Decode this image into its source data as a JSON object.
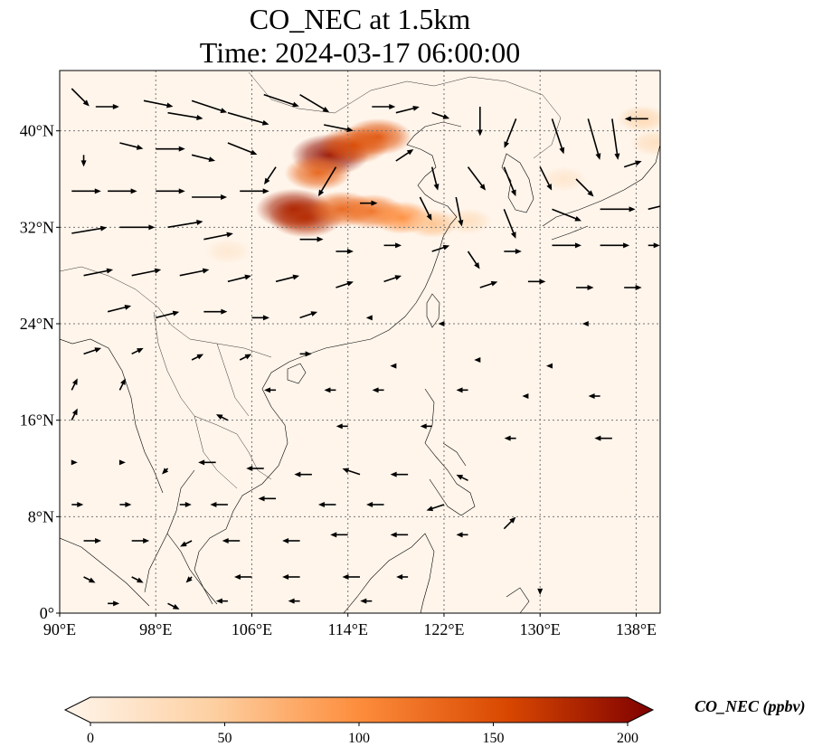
{
  "title": "CO_NEC at 1.5km",
  "subtitle": "Time: 2024-03-17 06:00:00",
  "map": {
    "lon_range": [
      90,
      140
    ],
    "lat_range": [
      0,
      45
    ],
    "lon_ticks": [
      {
        "value": 90,
        "label": "90°E"
      },
      {
        "value": 98,
        "label": "98°E"
      },
      {
        "value": 106,
        "label": "106°E"
      },
      {
        "value": 114,
        "label": "114°E"
      },
      {
        "value": 122,
        "label": "122°E"
      },
      {
        "value": 130,
        "label": "130°E"
      },
      {
        "value": 138,
        "label": "138°E"
      }
    ],
    "lat_ticks": [
      {
        "value": 0,
        "label": "0°"
      },
      {
        "value": 8,
        "label": "8°N"
      },
      {
        "value": 16,
        "label": "16°N"
      },
      {
        "value": 24,
        "label": "24°N"
      },
      {
        "value": 32,
        "label": "32°N"
      },
      {
        "value": 40,
        "label": "40°N"
      }
    ],
    "gridlines": true
  },
  "colorbar": {
    "label": "CO_NEC (ppbv)",
    "min": 0,
    "max": 200,
    "ticks": [
      {
        "value": 0,
        "label": "0"
      },
      {
        "value": 50,
        "label": "50"
      },
      {
        "value": 100,
        "label": "100"
      },
      {
        "value": 150,
        "label": "150"
      },
      {
        "value": 200,
        "label": "200"
      }
    ],
    "colors": [
      "#fff5eb",
      "#fdd0a2",
      "#fd8d3c",
      "#d94801",
      "#7f0000"
    ]
  },
  "concentration_plumes": [
    {
      "lon": 112.5,
      "lat": 38.0,
      "value": 190
    },
    {
      "lon": 114.5,
      "lat": 38.8,
      "value": 150
    },
    {
      "lon": 116.5,
      "lat": 39.5,
      "value": 140
    },
    {
      "lon": 111.5,
      "lat": 36.5,
      "value": 130
    },
    {
      "lon": 109.5,
      "lat": 33.5,
      "value": 180
    },
    {
      "lon": 110.5,
      "lat": 32.8,
      "value": 170
    },
    {
      "lon": 113.5,
      "lat": 33.5,
      "value": 130
    },
    {
      "lon": 116.0,
      "lat": 33.3,
      "value": 120
    },
    {
      "lon": 118.5,
      "lat": 32.8,
      "value": 100
    },
    {
      "lon": 121.0,
      "lat": 32.3,
      "value": 60
    },
    {
      "lon": 124.0,
      "lat": 32.5,
      "value": 30
    },
    {
      "lon": 138.5,
      "lat": 41.0,
      "value": 40
    },
    {
      "lon": 139.5,
      "lat": 39.0,
      "value": 30
    },
    {
      "lon": 132.0,
      "lat": 36.0,
      "value": 20
    },
    {
      "lon": 104.0,
      "lat": 30.0,
      "value": 18
    }
  ],
  "wind_vectors": [
    {
      "lon": 91,
      "lat": 43.5,
      "u": 3,
      "v": -3
    },
    {
      "lon": 93,
      "lat": 42,
      "u": 4,
      "v": 0
    },
    {
      "lon": 97,
      "lat": 42.5,
      "u": 5,
      "v": -1
    },
    {
      "lon": 99,
      "lat": 41.5,
      "u": 6,
      "v": -1
    },
    {
      "lon": 101,
      "lat": 42.5,
      "u": 6,
      "v": -2
    },
    {
      "lon": 104,
      "lat": 41.5,
      "u": 7,
      "v": -2
    },
    {
      "lon": 107,
      "lat": 43,
      "u": 6,
      "v": -2
    },
    {
      "lon": 110,
      "lat": 43,
      "u": 5,
      "v": -3
    },
    {
      "lon": 112,
      "lat": 40.5,
      "u": 5,
      "v": -1
    },
    {
      "lon": 116,
      "lat": 42,
      "u": 4,
      "v": 0
    },
    {
      "lon": 118,
      "lat": 41.5,
      "u": 4,
      "v": 1
    },
    {
      "lon": 121,
      "lat": 41.5,
      "u": 3,
      "v": -1
    },
    {
      "lon": 125,
      "lat": 42,
      "u": 0,
      "v": -5
    },
    {
      "lon": 128,
      "lat": 41,
      "u": -2,
      "v": -5
    },
    {
      "lon": 131,
      "lat": 41,
      "u": 2,
      "v": -6
    },
    {
      "lon": 134,
      "lat": 41,
      "u": 2,
      "v": -7
    },
    {
      "lon": 136,
      "lat": 41,
      "u": 1,
      "v": -7
    },
    {
      "lon": 139,
      "lat": 41,
      "u": -4,
      "v": 0
    },
    {
      "lon": 92,
      "lat": 38,
      "u": 0,
      "v": -2
    },
    {
      "lon": 95,
      "lat": 39,
      "u": 4,
      "v": -1
    },
    {
      "lon": 98,
      "lat": 38.5,
      "u": 5,
      "v": 0
    },
    {
      "lon": 101,
      "lat": 38,
      "u": 4,
      "v": -1
    },
    {
      "lon": 104,
      "lat": 39,
      "u": 5,
      "v": -2
    },
    {
      "lon": 108,
      "lat": 37,
      "u": -2,
      "v": -3
    },
    {
      "lon": 113,
      "lat": 37,
      "u": -3,
      "v": -5
    },
    {
      "lon": 118,
      "lat": 37.5,
      "u": 3,
      "v": 2
    },
    {
      "lon": 121,
      "lat": 37,
      "u": 1,
      "v": -4
    },
    {
      "lon": 124,
      "lat": 37,
      "u": 3,
      "v": -4
    },
    {
      "lon": 127,
      "lat": 37,
      "u": 2,
      "v": -5
    },
    {
      "lon": 130,
      "lat": 37,
      "u": 2,
      "v": -4
    },
    {
      "lon": 133,
      "lat": 36,
      "u": 3,
      "v": -3
    },
    {
      "lon": 137,
      "lat": 37,
      "u": 3,
      "v": 1
    },
    {
      "lon": 91,
      "lat": 35,
      "u": 5,
      "v": 0
    },
    {
      "lon": 94,
      "lat": 35,
      "u": 5,
      "v": 0
    },
    {
      "lon": 98,
      "lat": 35,
      "u": 5,
      "v": 0
    },
    {
      "lon": 101,
      "lat": 34.5,
      "u": 6,
      "v": 0
    },
    {
      "lon": 105,
      "lat": 35,
      "u": 5,
      "v": 0
    },
    {
      "lon": 115,
      "lat": 34,
      "u": 3,
      "v": 0
    },
    {
      "lon": 120,
      "lat": 34.5,
      "u": 2,
      "v": -4
    },
    {
      "lon": 123,
      "lat": 34.5,
      "u": 1,
      "v": -5
    },
    {
      "lon": 127,
      "lat": 33.5,
      "u": 2,
      "v": -5
    },
    {
      "lon": 131,
      "lat": 33.5,
      "u": 5,
      "v": -2
    },
    {
      "lon": 135,
      "lat": 33.5,
      "u": 6,
      "v": 0
    },
    {
      "lon": 139,
      "lat": 33.5,
      "u": 4,
      "v": 1
    },
    {
      "lon": 91,
      "lat": 31.5,
      "u": 6,
      "v": 1
    },
    {
      "lon": 95,
      "lat": 32,
      "u": 6,
      "v": 0
    },
    {
      "lon": 99,
      "lat": 32,
      "u": 6,
      "v": 1
    },
    {
      "lon": 102,
      "lat": 31,
      "u": 5,
      "v": 1
    },
    {
      "lon": 110,
      "lat": 31,
      "u": 4,
      "v": 0
    },
    {
      "lon": 113,
      "lat": 30,
      "u": 3,
      "v": 0
    },
    {
      "lon": 117,
      "lat": 30.5,
      "u": 3,
      "v": 0
    },
    {
      "lon": 121,
      "lat": 30,
      "u": 3,
      "v": 1
    },
    {
      "lon": 124,
      "lat": 30,
      "u": 2,
      "v": -3
    },
    {
      "lon": 127,
      "lat": 30,
      "u": 3,
      "v": 0
    },
    {
      "lon": 131,
      "lat": 30.5,
      "u": 5,
      "v": 0
    },
    {
      "lon": 135,
      "lat": 30.5,
      "u": 5,
      "v": 0
    },
    {
      "lon": 139,
      "lat": 30.5,
      "u": 2,
      "v": 0
    },
    {
      "lon": 92,
      "lat": 28,
      "u": 5,
      "v": 1
    },
    {
      "lon": 96,
      "lat": 28,
      "u": 5,
      "v": 1
    },
    {
      "lon": 100,
      "lat": 28,
      "u": 5,
      "v": 1
    },
    {
      "lon": 104,
      "lat": 27.5,
      "u": 4,
      "v": 1
    },
    {
      "lon": 108,
      "lat": 27.5,
      "u": 4,
      "v": 1
    },
    {
      "lon": 113,
      "lat": 27,
      "u": 3,
      "v": 1
    },
    {
      "lon": 117,
      "lat": 27.5,
      "u": 3,
      "v": 1
    },
    {
      "lon": 125,
      "lat": 27,
      "u": 3,
      "v": 1
    },
    {
      "lon": 129,
      "lat": 27.5,
      "u": 3,
      "v": 0
    },
    {
      "lon": 133,
      "lat": 27,
      "u": 3,
      "v": 0
    },
    {
      "lon": 137,
      "lat": 27,
      "u": 3,
      "v": 0
    },
    {
      "lon": 94,
      "lat": 25,
      "u": 4,
      "v": 1
    },
    {
      "lon": 98,
      "lat": 24.5,
      "u": 4,
      "v": 1
    },
    {
      "lon": 102,
      "lat": 25,
      "u": 4,
      "v": 0
    },
    {
      "lon": 106,
      "lat": 24.5,
      "u": 3,
      "v": 0
    },
    {
      "lon": 110,
      "lat": 24.5,
      "u": 3,
      "v": 1
    },
    {
      "lon": 116,
      "lat": 24.5,
      "u": -1,
      "v": 0
    },
    {
      "lon": 122,
      "lat": 24,
      "u": -1,
      "v": 0
    },
    {
      "lon": 134,
      "lat": 24,
      "u": -1,
      "v": 0
    },
    {
      "lon": 92,
      "lat": 21.5,
      "u": 3,
      "v": 1
    },
    {
      "lon": 96,
      "lat": 21.5,
      "u": 2,
      "v": 1
    },
    {
      "lon": 101,
      "lat": 21,
      "u": 2,
      "v": 1
    },
    {
      "lon": 105,
      "lat": 21,
      "u": 2,
      "v": 1
    },
    {
      "lon": 110,
      "lat": 21.5,
      "u": 2,
      "v": 0
    },
    {
      "lon": 118,
      "lat": 20.5,
      "u": -1,
      "v": 0
    },
    {
      "lon": 125,
      "lat": 21,
      "u": -1,
      "v": 0
    },
    {
      "lon": 131,
      "lat": 20.5,
      "u": -1,
      "v": 0
    },
    {
      "lon": 91,
      "lat": 18.5,
      "u": 1,
      "v": 2
    },
    {
      "lon": 95,
      "lat": 18.5,
      "u": 1,
      "v": 2
    },
    {
      "lon": 108,
      "lat": 18.5,
      "u": -2,
      "v": 0
    },
    {
      "lon": 113,
      "lat": 18.5,
      "u": -2,
      "v": 0
    },
    {
      "lon": 117,
      "lat": 18.5,
      "u": -2,
      "v": 0
    },
    {
      "lon": 124,
      "lat": 18.5,
      "u": -2,
      "v": 0
    },
    {
      "lon": 129,
      "lat": 18,
      "u": -1,
      "v": 0
    },
    {
      "lon": 135,
      "lat": 18,
      "u": -2,
      "v": 0
    },
    {
      "lon": 91,
      "lat": 16,
      "u": 1,
      "v": 2
    },
    {
      "lon": 104,
      "lat": 16,
      "u": -2,
      "v": 1
    },
    {
      "lon": 114,
      "lat": 15.5,
      "u": -2,
      "v": 0
    },
    {
      "lon": 121,
      "lat": 15.5,
      "u": -2,
      "v": 0
    },
    {
      "lon": 128,
      "lat": 14.5,
      "u": -2,
      "v": 0
    },
    {
      "lon": 136,
      "lat": 14.5,
      "u": -3,
      "v": 0
    },
    {
      "lon": 91,
      "lat": 12.5,
      "u": 1,
      "v": 0
    },
    {
      "lon": 95,
      "lat": 12.5,
      "u": 1,
      "v": 0
    },
    {
      "lon": 99,
      "lat": 12,
      "u": -1,
      "v": -1
    },
    {
      "lon": 103,
      "lat": 12.5,
      "u": -3,
      "v": 0
    },
    {
      "lon": 107,
      "lat": 12,
      "u": -3,
      "v": 0
    },
    {
      "lon": 111,
      "lat": 11.5,
      "u": -3,
      "v": 0
    },
    {
      "lon": 115,
      "lat": 11.5,
      "u": -3,
      "v": 1
    },
    {
      "lon": 119,
      "lat": 11.5,
      "u": -3,
      "v": 0
    },
    {
      "lon": 124,
      "lat": 11,
      "u": -2,
      "v": 1
    },
    {
      "lon": 91,
      "lat": 9,
      "u": 2,
      "v": 0
    },
    {
      "lon": 95,
      "lat": 9,
      "u": 2,
      "v": 0
    },
    {
      "lon": 100,
      "lat": 9,
      "u": 2,
      "v": 0
    },
    {
      "lon": 104,
      "lat": 9,
      "u": -3,
      "v": 0
    },
    {
      "lon": 108,
      "lat": 9.5,
      "u": -3,
      "v": 0
    },
    {
      "lon": 113,
      "lat": 9,
      "u": -3,
      "v": 0
    },
    {
      "lon": 117,
      "lat": 9,
      "u": -3,
      "v": 0
    },
    {
      "lon": 122,
      "lat": 9,
      "u": -3,
      "v": -1
    },
    {
      "lon": 127,
      "lat": 7,
      "u": 2,
      "v": 2
    },
    {
      "lon": 92,
      "lat": 6,
      "u": 3,
      "v": 0
    },
    {
      "lon": 96,
      "lat": 6,
      "u": 3,
      "v": 0
    },
    {
      "lon": 101,
      "lat": 6,
      "u": -2,
      "v": -1
    },
    {
      "lon": 105,
      "lat": 6,
      "u": -3,
      "v": 0
    },
    {
      "lon": 110,
      "lat": 6,
      "u": -3,
      "v": 0
    },
    {
      "lon": 114,
      "lat": 6.5,
      "u": -3,
      "v": 0
    },
    {
      "lon": 119,
      "lat": 6.5,
      "u": -3,
      "v": 0
    },
    {
      "lon": 124,
      "lat": 6.5,
      "u": -2,
      "v": 0
    },
    {
      "lon": 92,
      "lat": 3,
      "u": 2,
      "v": -1
    },
    {
      "lon": 96,
      "lat": 3,
      "u": 2,
      "v": -1
    },
    {
      "lon": 101,
      "lat": 3,
      "u": -1,
      "v": -1
    },
    {
      "lon": 106,
      "lat": 3,
      "u": -3,
      "v": 0
    },
    {
      "lon": 110,
      "lat": 3,
      "u": -3,
      "v": 0
    },
    {
      "lon": 115,
      "lat": 3,
      "u": -3,
      "v": 0
    },
    {
      "lon": 119,
      "lat": 3,
      "u": -2,
      "v": 0
    },
    {
      "lon": 130,
      "lat": 2,
      "u": 0,
      "v": -1
    },
    {
      "lon": 94,
      "lat": 0.8,
      "u": 2,
      "v": 0
    },
    {
      "lon": 99,
      "lat": 0.8,
      "u": 2,
      "v": -1
    },
    {
      "lon": 104,
      "lat": 1,
      "u": -2,
      "v": 0
    },
    {
      "lon": 110,
      "lat": 1,
      "u": -2,
      "v": 0
    },
    {
      "lon": 116,
      "lat": 1,
      "u": -2,
      "v": 0
    }
  ]
}
